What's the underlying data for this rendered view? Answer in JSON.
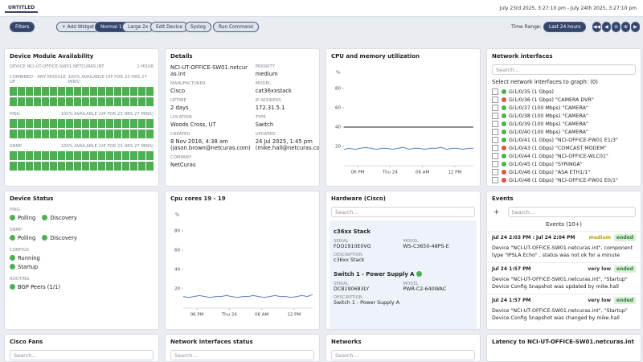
{
  "topbar": {
    "tab": "UNTITLED",
    "range": "July 23rd 2025, 3:27:10 pm - July 24th 2025, 3:27:10 pm"
  },
  "toolbar": {
    "buttons": [
      "Filters",
      "+ Add Widget",
      "Normal 1x",
      "Large 2x",
      "Edit Device",
      "Syslog",
      "Run Command"
    ],
    "time_range_label": "Time Range:",
    "time_range": "Last 24 hours"
  },
  "availability": {
    "title": "Device Module Availability",
    "device": "DEVICE NCI-UT-OFFICE-SW01.NETCURAS.INT",
    "window": "1 HOUR",
    "rows": [
      {
        "label": "COMBINED - ANY MODULE UP",
        "status": "100% AVAILABLE (UP FOR 23 HRS 27 MINS)"
      },
      {
        "label": "PING",
        "status": "100% AVAILABLE (UP FOR 23 HRS 27 MINS)"
      },
      {
        "label": "SNMP",
        "status": "100% AVAILABLE (UP FOR 23 HRS 27 MINS)"
      }
    ]
  },
  "details": {
    "title": "Details",
    "fields": [
      {
        "value": "NCI-UT-OFFICE-SW01.netcuras.int"
      },
      {
        "label": "PRIORITY",
        "value": "medium"
      },
      {
        "label": "MANUFACTURER",
        "value": "Cisco"
      },
      {
        "label": "MODEL",
        "value": "cat36xxstack"
      },
      {
        "label": "UPTIME",
        "value": "2 days"
      },
      {
        "label": "IP ADDRESS",
        "value": "172.31.5.1"
      },
      {
        "label": "LOCATION",
        "value": "Woods Cross, UT"
      },
      {
        "label": "TYPE",
        "value": "Switch"
      },
      {
        "label": "CREATED",
        "value": "8 Nov 2016, 4:38 am",
        "note": "(jason.brown@netcuras.com)"
      },
      {
        "label": "UPDATED",
        "value": "24 Jul 2025, 1:45 pm",
        "note": "(mike.hall@netcuras.com)"
      },
      {
        "label": "COMPANY",
        "value": "NetCuras"
      }
    ]
  },
  "chart_data": [
    {
      "type": "line",
      "title": "CPU and memory utilization",
      "y_label": "%",
      "x": [
        0,
        1,
        2,
        3,
        4,
        5,
        6,
        7,
        8,
        9,
        10,
        11,
        12,
        13,
        14,
        15,
        16,
        17,
        18,
        19,
        20,
        21,
        22,
        23,
        24
      ],
      "xlim": [
        0,
        24
      ],
      "xticks": [
        {
          "value": 2.55,
          "label": "06 PM"
        },
        {
          "value": 8.55,
          "label": "Thu 24"
        },
        {
          "value": 14.55,
          "label": "06 AM"
        },
        {
          "value": 20.55,
          "label": "12 PM"
        }
      ],
      "ylim": [
        0,
        100
      ],
      "yticks": [
        20,
        40,
        60,
        80
      ],
      "series": [
        {
          "color": "#222222",
          "values": [
            40,
            40,
            40,
            40,
            40,
            40,
            40,
            40,
            40,
            40,
            40,
            40,
            40,
            40,
            40,
            40,
            40,
            40,
            40,
            40,
            40,
            40,
            40,
            40,
            40
          ]
        },
        {
          "color": "#5b7fc0",
          "values": [
            17,
            18,
            17,
            18,
            19,
            18,
            17,
            18,
            18,
            17,
            18,
            19,
            17,
            18,
            18,
            17,
            18,
            18,
            19,
            17,
            18,
            18,
            17,
            18,
            18
          ]
        }
      ]
    },
    {
      "type": "line",
      "title": "Cpu cores 19 - 19",
      "y_label": "%",
      "x": [
        0,
        1,
        2,
        3,
        4,
        5,
        6,
        7,
        8,
        9,
        10,
        11,
        12,
        13,
        14,
        15,
        16,
        17,
        18,
        19,
        20,
        21,
        22,
        23,
        24
      ],
      "xlim": [
        0,
        24
      ],
      "xticks": [
        {
          "value": 2.55,
          "label": "06 PM"
        },
        {
          "value": 8.55,
          "label": "Thu 24"
        },
        {
          "value": 14.55,
          "label": "06 AM"
        },
        {
          "value": 20.55,
          "label": "12 PM"
        }
      ],
      "ylim": [
        0,
        100
      ],
      "yticks": [
        20,
        40,
        60,
        80
      ],
      "series": [
        {
          "color": "#5b7fc0",
          "values": [
            12,
            11,
            12,
            13,
            12,
            11,
            12,
            12,
            13,
            12,
            11,
            12,
            12,
            13,
            12,
            11,
            12,
            13,
            12,
            12,
            11,
            12,
            13,
            12,
            14
          ]
        }
      ]
    }
  ],
  "interfaces": {
    "title": "Network interfaces",
    "search": "Search...",
    "prompt": "Select network interfaces to graph: (0)",
    "items": [
      {
        "label": "Gi1/0/35 (1 Gbps)",
        "color": "#4caf50"
      },
      {
        "label": "Gi1/0/36 (1 Gbps) \"CAMERA DVR\"",
        "color": "#e05545"
      },
      {
        "label": "Gi1/0/37 (100 Mbps) \"CAMERA\"",
        "color": "#4caf50"
      },
      {
        "label": "Gi1/0/38 (100 Mbps) \"CAMERA\"",
        "color": "#4caf50"
      },
      {
        "label": "Gi1/0/39 (100 Mbps) \"CAMERA\"",
        "color": "#4caf50"
      },
      {
        "label": "Gi1/0/40 (100 Mbps) \"CAMERA\"",
        "color": "#4caf50"
      },
      {
        "label": "Gi1/0/41 (1 Gbps) \"NCI-OFFICE-FW01 E1/3\"",
        "color": "#4caf50"
      },
      {
        "label": "Gi1/0/43 (1 Gbps) \"COMCAST MODEM\"",
        "color": "#e05545"
      },
      {
        "label": "Gi1/0/44 (1 Gbps) \"NCI-OFFICE-WLC01\"",
        "color": "#4caf50"
      },
      {
        "label": "Gi1/0/45 (1 Gbps) \"SYRINGA\"",
        "color": "#4caf50"
      },
      {
        "label": "Gi1/0/46 (1 Gbps) \"ASA ETH1/1\"",
        "color": "#e05545"
      },
      {
        "label": "Gi1/0/48 (1 Gbps) \"NCI-OFFICE-FW01 E0/1\"",
        "color": "#e05545"
      }
    ]
  },
  "device_status": {
    "title": "Device Status",
    "groups": [
      {
        "name": "PING",
        "items": [
          "Polling",
          "Discovery"
        ]
      },
      {
        "name": "SNMP",
        "items": [
          "Polling",
          "Discovery"
        ]
      },
      {
        "name": "CONFIGS",
        "items": [
          "Running",
          "Startup"
        ]
      },
      {
        "name": "ROUTING",
        "items": [
          "BGP Peers (1/1)"
        ]
      }
    ]
  },
  "hardware": {
    "title": "Hardware (Cisco)",
    "search": "Search...",
    "items": [
      {
        "name": "c36xx Stack",
        "fields": [
          {
            "label": "SERIAL",
            "value": "FDO1910E0VG"
          },
          {
            "label": "MODEL",
            "value": "WS-C3650-48PS-E"
          },
          {
            "label": "DESCRIPTION",
            "value": "c36xx Stack"
          }
        ]
      },
      {
        "name": "Switch 1 - Power Supply A",
        "fields": [
          {
            "label": "SERIAL",
            "value": "DCB190683LY"
          },
          {
            "label": "MODEL",
            "value": "PWR-C2-640WAC"
          },
          {
            "label": "DESCRIPTION",
            "value": "Switch 1 - Power Supply A"
          }
        ]
      }
    ]
  },
  "events": {
    "title": "Events",
    "search": "Search...",
    "heading": "Events (10+)",
    "items": [
      {
        "time": "Jul 24 2:03 PM : Jul 24 2:04 PM",
        "severity": "medium",
        "state": "ended",
        "text": "Device \"NCI-UT-OFFICE-SW01.netcuras.int\", component type \"IPSLA Echo\" , status was not ok for a minute"
      },
      {
        "time": "Jul 24 1:57 PM",
        "severity": "very low",
        "state": "ended",
        "text": "Device \"NCI-UT-OFFICE-SW01.netcuras.int\", \"Startup\" Device Config Snapshot was updated by mike.hall"
      },
      {
        "time": "Jul 24 1:57 PM",
        "severity": "very low",
        "state": "ended",
        "text": "Device \"NCI-UT-OFFICE-SW01.netcuras.int\", \"Startup\" Device Config Snapshot was changed by mike.hall"
      }
    ]
  },
  "bottom": [
    {
      "title": "Cisco Fans",
      "search": "Search..."
    },
    {
      "title": "Network interfaces status",
      "search": "Search..."
    },
    {
      "title": "Networks",
      "search": "Search..."
    },
    {
      "title": "Latency to NCI-UT-OFFICE-SW01.netcuras.int"
    }
  ]
}
